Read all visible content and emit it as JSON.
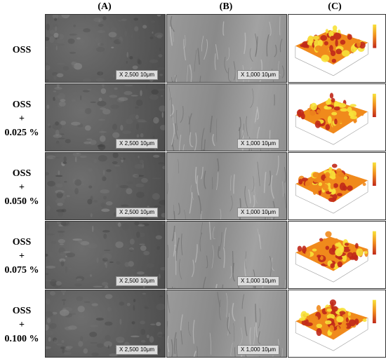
{
  "columns": [
    "(A)",
    "(B)",
    "(C)"
  ],
  "rows": [
    {
      "label_lines": [
        "OSS"
      ],
      "scale_a": "X 2,500 10μm",
      "scale_b": "X 1,000 10μm"
    },
    {
      "label_lines": [
        "OSS",
        "+",
        "0.025 %"
      ],
      "scale_a": "X 2,500 10μm",
      "scale_b": "X 1,000 10μm"
    },
    {
      "label_lines": [
        "OSS",
        "+",
        "0.050 %"
      ],
      "scale_a": "X 2,500 10μm",
      "scale_b": "X 1,000 10μm"
    },
    {
      "label_lines": [
        "OSS",
        "+",
        "0.075 %"
      ],
      "scale_a": "X 2,500 10μm",
      "scale_b": "X 1,000 10μm"
    },
    {
      "label_lines": [
        "OSS",
        "+",
        "0.100 %"
      ],
      "scale_a": "X 2,500 10μm",
      "scale_b": "X 1,000 10μm"
    }
  ],
  "colors": {
    "afm_high": "#f7e23a",
    "afm_mid": "#f08a1c",
    "afm_low": "#c0281a"
  }
}
